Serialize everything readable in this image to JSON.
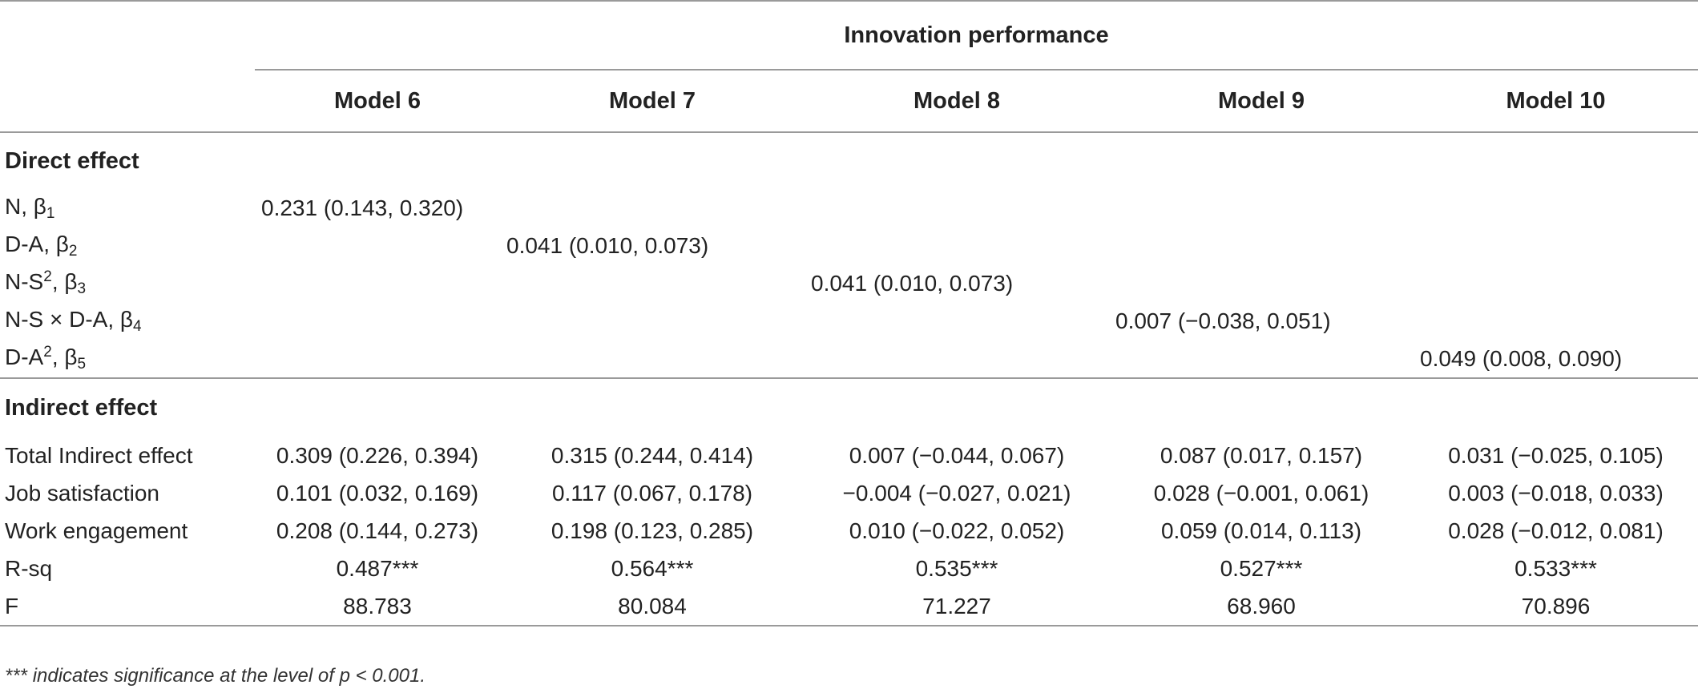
{
  "table": {
    "group_header": "Innovation performance",
    "model_headers": [
      "Model 6",
      "Model 7",
      "Model 8",
      "Model 9",
      "Model 10"
    ],
    "direct_section_label": "Direct effect",
    "direct_rows": [
      {
        "label_prefix": "N, ",
        "label_beta": "β",
        "label_sub": "1",
        "values": [
          "0.231 (0.143, 0.320)",
          "",
          "",
          "",
          ""
        ]
      },
      {
        "label_prefix": "D-A, ",
        "label_beta": "β",
        "label_sub": "2",
        "values": [
          "",
          "0.041 (0.010, 0.073)",
          "",
          "",
          ""
        ]
      },
      {
        "label_prefix": "N-S",
        "label_sup": "2",
        "label_mid": ", ",
        "label_beta": "β",
        "label_sub": "3",
        "values": [
          "",
          "",
          "0.041 (0.010, 0.073)",
          "",
          ""
        ]
      },
      {
        "label_prefix": "N-S × D-A, ",
        "label_beta": "β",
        "label_sub": "4",
        "values": [
          "",
          "",
          "",
          "0.007 (−0.038, 0.051)",
          ""
        ]
      },
      {
        "label_prefix": "D-A",
        "label_sup": "2",
        "label_mid": ", ",
        "label_beta": "β",
        "label_sub": "5",
        "values": [
          "",
          "",
          "",
          "",
          "0.049 (0.008, 0.090)"
        ]
      }
    ],
    "indirect_section_label": "Indirect effect",
    "indirect_rows": [
      {
        "label": "Total Indirect effect",
        "values": [
          "0.309 (0.226, 0.394)",
          "0.315 (0.244, 0.414)",
          "0.007 (−0.044, 0.067)",
          "0.087 (0.017, 0.157)",
          "0.031 (−0.025, 0.105)"
        ]
      },
      {
        "label": "Job satisfaction",
        "values": [
          "0.101 (0.032, 0.169)",
          "0.117 (0.067, 0.178)",
          "−0.004 (−0.027, 0.021)",
          "0.028 (−0.001, 0.061)",
          "0.003 (−0.018, 0.033)"
        ]
      },
      {
        "label": "Work engagement",
        "values": [
          "0.208 (0.144, 0.273)",
          "0.198 (0.123, 0.285)",
          "0.010 (−0.022, 0.052)",
          "0.059 (0.014, 0.113)",
          "0.028 (−0.012, 0.081)"
        ]
      },
      {
        "label": "R-sq",
        "values": [
          "0.487***",
          "0.564***",
          "0.535***",
          "0.527***",
          "0.533***"
        ]
      },
      {
        "label": "F",
        "values": [
          "88.783",
          "80.084",
          "71.227",
          "68.960",
          "70.896"
        ]
      }
    ],
    "footnote": "*** indicates significance at the level of p < 0.001."
  }
}
